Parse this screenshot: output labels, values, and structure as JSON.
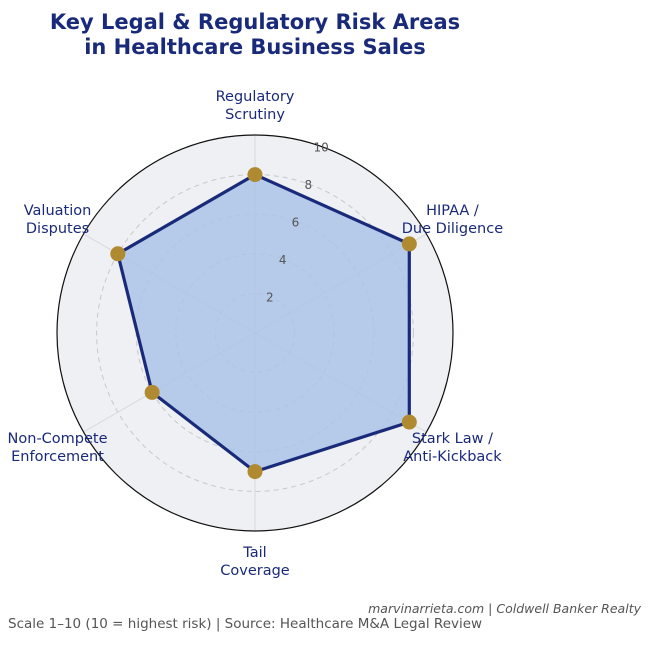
{
  "chart_data": {
    "type": "radar",
    "title_lines": [
      "Key Legal & Regulatory Risk Areas",
      "in Healthcare Business Sales"
    ],
    "categories": [
      [
        "Regulatory",
        "Scrutiny"
      ],
      [
        "HIPAA /",
        "Due Diligence"
      ],
      [
        "Stark Law /",
        "Anti-Kickback"
      ],
      [
        "Tail",
        "Coverage"
      ],
      [
        "Non-Compete",
        "Enforcement"
      ],
      [
        "Valuation",
        "Disputes"
      ]
    ],
    "values": [
      8,
      9,
      9,
      7,
      6,
      8
    ],
    "rlim": [
      0,
      10
    ],
    "rticks": [
      2,
      4,
      6,
      8,
      10
    ],
    "grid": true,
    "colors": {
      "fill": "#aac4e6",
      "line": "#1a2a7a",
      "marker": "#b08a30",
      "background": "#eef0f4",
      "grid": "#c8c8c8"
    }
  },
  "footer": {
    "attribution": "marvinarrieta.com | Coldwell Banker Realty",
    "note": "Scale 1–10 (10 = highest risk) | Source: Healthcare M&A Legal Review"
  }
}
